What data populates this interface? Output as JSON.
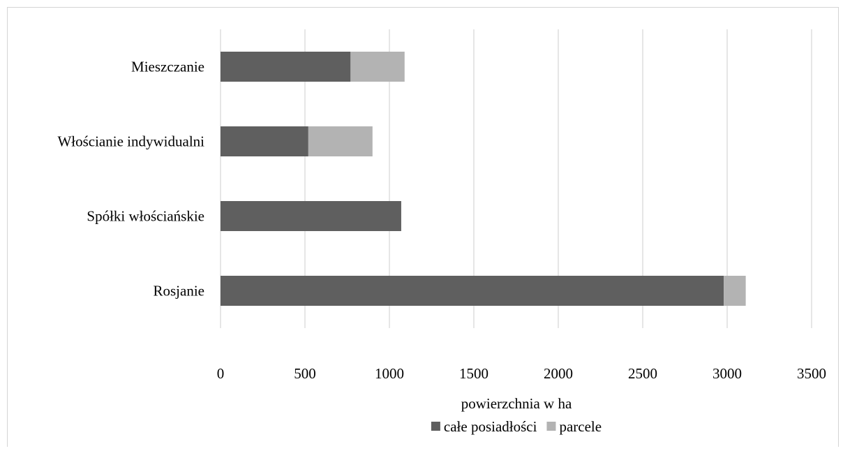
{
  "chart_data": {
    "type": "bar",
    "orientation": "horizontal",
    "stacked": true,
    "title": "",
    "xlabel": "powierzchnia w ha",
    "ylabel": "",
    "xlim": [
      0,
      3500
    ],
    "x_ticks": [
      0,
      500,
      1000,
      1500,
      2000,
      2500,
      3000,
      3500
    ],
    "categories": [
      "Mieszczanie",
      "Włościanie indywidualni",
      "Spółki włościańskie",
      "Rosjanie"
    ],
    "series": [
      {
        "name": "całe posiadłości",
        "color": "#5f5f5f",
        "values": [
          770,
          520,
          1070,
          2980
        ]
      },
      {
        "name": "parcele",
        "color": "#b3b3b3",
        "values": [
          320,
          380,
          0,
          130
        ]
      }
    ],
    "grid": "vertical",
    "legend": "bottom-center"
  }
}
